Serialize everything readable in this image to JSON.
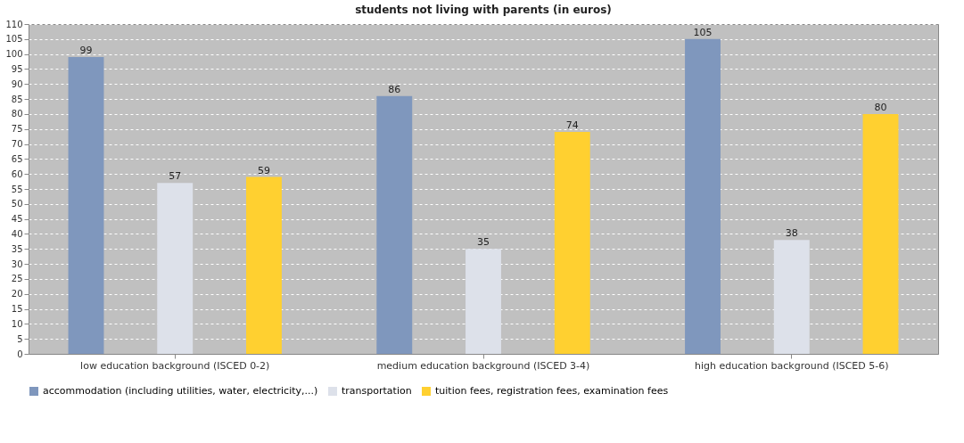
{
  "chart_data": {
    "type": "bar",
    "title": "students not living with parents (in euros)",
    "categories": [
      "low education background (ISCED 0-2)",
      "medium education background (ISCED 3-4)",
      "high education background (ISCED 5-6)"
    ],
    "series": [
      {
        "name": "accommodation (including utilities, water, electricity,...)",
        "color": "#7f97bd",
        "values": [
          99,
          86,
          105
        ]
      },
      {
        "name": "transportation",
        "color": "#dde1ea",
        "values": [
          57,
          35,
          38
        ]
      },
      {
        "name": "tuition fees, registration fees, examination fees",
        "color": "#ffd030",
        "values": [
          59,
          74,
          80
        ]
      }
    ],
    "ylim": [
      0,
      110
    ],
    "yticks": [
      0,
      5,
      10,
      15,
      20,
      25,
      30,
      35,
      40,
      45,
      50,
      55,
      60,
      65,
      70,
      75,
      80,
      85,
      90,
      95,
      100,
      105,
      110
    ],
    "grid": "y",
    "legend": "bottom",
    "data_labels": true
  }
}
